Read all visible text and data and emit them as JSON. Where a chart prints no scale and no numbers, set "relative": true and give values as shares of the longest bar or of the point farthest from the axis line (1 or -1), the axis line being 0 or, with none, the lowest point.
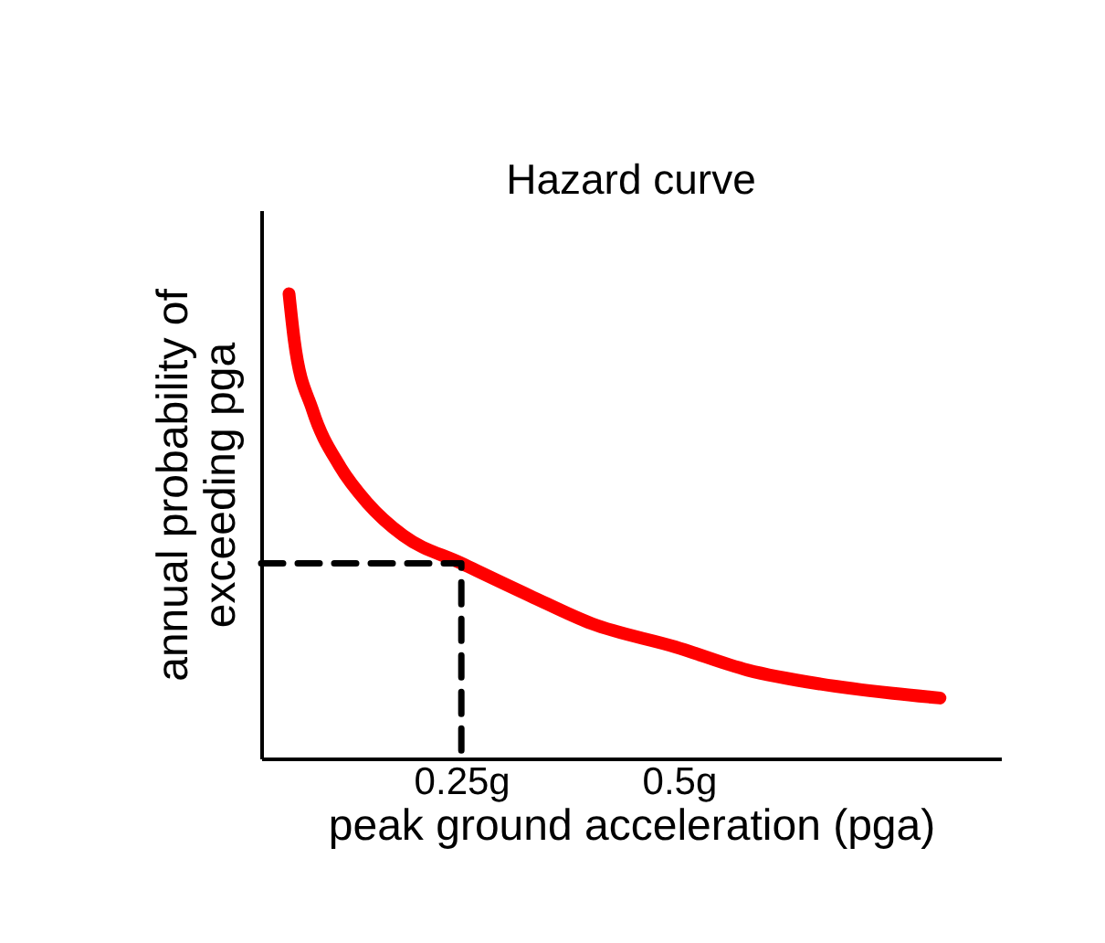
{
  "chart_data": {
    "type": "line",
    "title": "Hazard curve",
    "xlabel": "peak ground acceleration (pga)",
    "ylabel": "annual probability of\nexceeding pga",
    "relative": true,
    "grid": false,
    "xlim": [
      0.02,
      0.87
    ],
    "xticks": [
      {
        "value": 0.25,
        "label": "0.25g"
      },
      {
        "value": 0.5,
        "label": "0.5g"
      }
    ],
    "series": [
      {
        "color": "#ff0000",
        "line_style": "solid",
        "x": [
          0.052,
          0.058,
          0.079,
          0.11,
          0.142,
          0.183,
          0.25,
          0.329,
          0.4,
          0.496,
          0.579,
          0.663,
          0.746,
          0.8
        ],
        "values": [
          1.0,
          0.9,
          0.75,
          0.63,
          0.55,
          0.48,
          0.42,
          0.35,
          0.29,
          0.24,
          0.19,
          0.16,
          0.14,
          0.13
        ]
      },
      {
        "color": "#000000",
        "line_style": "dashed",
        "x": [
          0.02,
          0.25,
          0.25
        ],
        "values": [
          0.42,
          0.42,
          0
        ]
      }
    ]
  }
}
